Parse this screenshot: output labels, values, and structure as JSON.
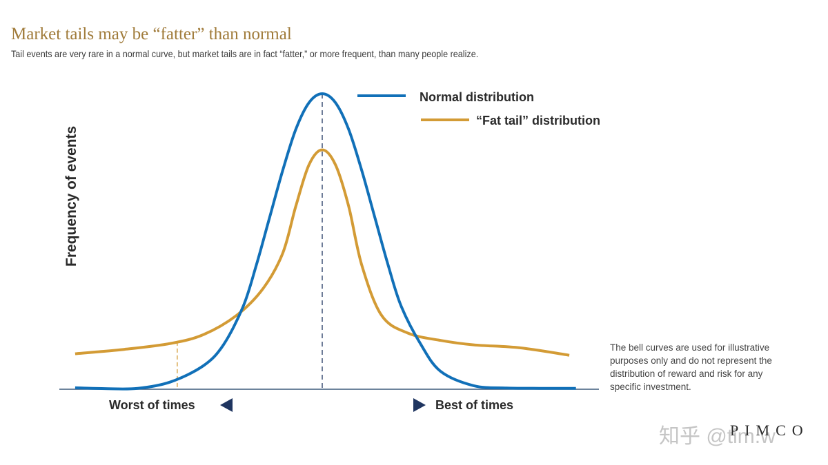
{
  "title": "Market tails may be “fatter” than normal",
  "subtitle": "Tail events are very rare in a normal curve, but market tails are in fact “fatter,” or more frequent, than many people realize.",
  "disclaimer": "The bell curves are used for illustrative purposes only and do not represent the distribution of reward and risk for any specific investment.",
  "watermark": "知乎 @tim.w",
  "brand": "PIMCO",
  "colors": {
    "normal": "#1170b8",
    "fat_tail": "#d39b35",
    "title": "#a07b3a",
    "arrow": "#1f3560"
  },
  "chart_data": {
    "type": "line",
    "title": "Market tails may be “fatter” than normal",
    "ylabel": "Frequency of events",
    "xlabel_left": "Worst of times",
    "xlabel_right": "Best of times",
    "xlim": [
      -4,
      4
    ],
    "ylim": [
      0,
      1
    ],
    "x_ticks_shown": false,
    "y_ticks_shown": false,
    "legend_position": "top-right",
    "series": [
      {
        "name": "Normal distribution",
        "x": [
          -3.75,
          -3.3,
          -2.8,
          -2.3,
          -1.8,
          -1.5,
          -1.2,
          -1.0,
          -0.8,
          -0.6,
          -0.4,
          -0.2,
          0,
          0.2,
          0.4,
          0.6,
          0.8,
          1.0,
          1.2,
          1.5,
          1.8,
          2.3,
          2.8,
          3.3,
          3.85
        ],
        "values": [
          0.005,
          0.002,
          0.003,
          0.025,
          0.08,
          0.15,
          0.28,
          0.42,
          0.58,
          0.74,
          0.88,
          0.97,
          1.0,
          0.97,
          0.88,
          0.74,
          0.58,
          0.42,
          0.28,
          0.15,
          0.06,
          0.012,
          0.004,
          0.003,
          0.003
        ]
      },
      {
        "name": "“Fat tail” distribution",
        "x": [
          -3.75,
          -3.0,
          -2.3,
          -1.8,
          -1.3,
          -0.9,
          -0.6,
          -0.4,
          -0.2,
          0,
          0.2,
          0.4,
          0.6,
          0.9,
          1.3,
          1.8,
          2.3,
          3.0,
          3.75
        ],
        "values": [
          0.12,
          0.135,
          0.155,
          0.185,
          0.25,
          0.34,
          0.46,
          0.62,
          0.76,
          0.81,
          0.76,
          0.62,
          0.42,
          0.25,
          0.19,
          0.165,
          0.15,
          0.14,
          0.115
        ]
      }
    ],
    "annotations": [
      "mean (dashed vertical line at x=0)",
      "worst-of-times marker (dashed vertical line at x=-2.2)"
    ]
  }
}
